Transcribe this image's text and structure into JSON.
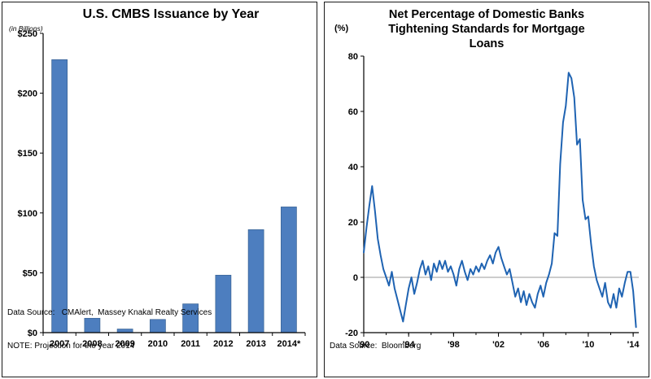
{
  "charts": {
    "left": {
      "title": "U.S. CMBS Issuance by Year",
      "axis_note": "(in Billions)",
      "footer_line1": "Data Source:   CMAlert,  Massey Knakal Realty Services",
      "footer_line2": "NOTE: Projection for the year 2014"
    },
    "right": {
      "title_lines": {
        "0": "Net Percentage of Domestic Banks",
        "1": "Tightening Standards for Mortgage",
        "2": "Loans"
      },
      "axis_note": "(%)",
      "footer_line1": "Data Source:  Bloomberg"
    }
  },
  "chart_data": [
    {
      "type": "bar",
      "title": "U.S. CMBS Issuance by Year",
      "ylabel": "(in Billions)",
      "categories": [
        "2007",
        "2008",
        "2009",
        "2010",
        "2011",
        "2012",
        "2013",
        "2014*"
      ],
      "values": [
        228,
        12,
        3,
        11,
        24,
        48,
        86,
        105
      ],
      "ylim": [
        0,
        250
      ],
      "yticks": [
        0,
        50,
        100,
        150,
        200,
        250
      ],
      "ytick_labels": [
        "$0",
        "$50",
        "$100",
        "$150",
        "$200",
        "$250"
      ],
      "grid": false,
      "legend": "none",
      "bar_color": "#4d7ebf",
      "bar_edge": "#3a6496",
      "note": "NOTE: Projection for the year 2014",
      "data_source": "CMAlert, Massey Knakal Realty Services"
    },
    {
      "type": "line",
      "title": "Net Percentage of Domestic Banks Tightening Standards for Mortgage Loans",
      "ylabel": "(%)",
      "xlim": [
        1990,
        2014.5
      ],
      "ylim": [
        -20,
        80
      ],
      "yticks": [
        -20,
        0,
        20,
        40,
        60,
        80
      ],
      "xticks": [
        1990,
        1994,
        1998,
        2002,
        2006,
        2010,
        2014
      ],
      "xtick_labels": [
        "'90",
        "'94",
        "'98",
        "'02",
        "'06",
        "'10",
        "'14"
      ],
      "grid": false,
      "zero_line": true,
      "zero_line_color": "#999999",
      "legend": "none",
      "line_color": "#1f63b2",
      "x_start": 1990,
      "x_step": 0.25,
      "x_unit": "year (quarterly)",
      "y": [
        9,
        18,
        26,
        33,
        24,
        14,
        8,
        3,
        0,
        -3,
        2,
        -4,
        -8,
        -12,
        -16,
        -10,
        -4,
        0,
        -6,
        -2,
        3,
        6,
        1,
        4,
        -1,
        5,
        2,
        6,
        3,
        6,
        2,
        4,
        1,
        -3,
        3,
        6,
        2,
        -1,
        3,
        1,
        4,
        2,
        5,
        3,
        6,
        8,
        5,
        9,
        11,
        7,
        4,
        1,
        3,
        -2,
        -7,
        -4,
        -9,
        -5,
        -10,
        -6,
        -9,
        -11,
        -6,
        -3,
        -7,
        -2,
        1,
        5,
        16,
        15,
        41,
        56,
        62,
        74,
        72,
        65,
        48,
        50,
        28,
        21,
        22,
        12,
        4,
        -1,
        -4,
        -7,
        -2,
        -9,
        -11,
        -6,
        -11,
        -4,
        -7,
        -2,
        2,
        2,
        -5,
        -18
      ],
      "data_source": "Bloomberg"
    }
  ]
}
